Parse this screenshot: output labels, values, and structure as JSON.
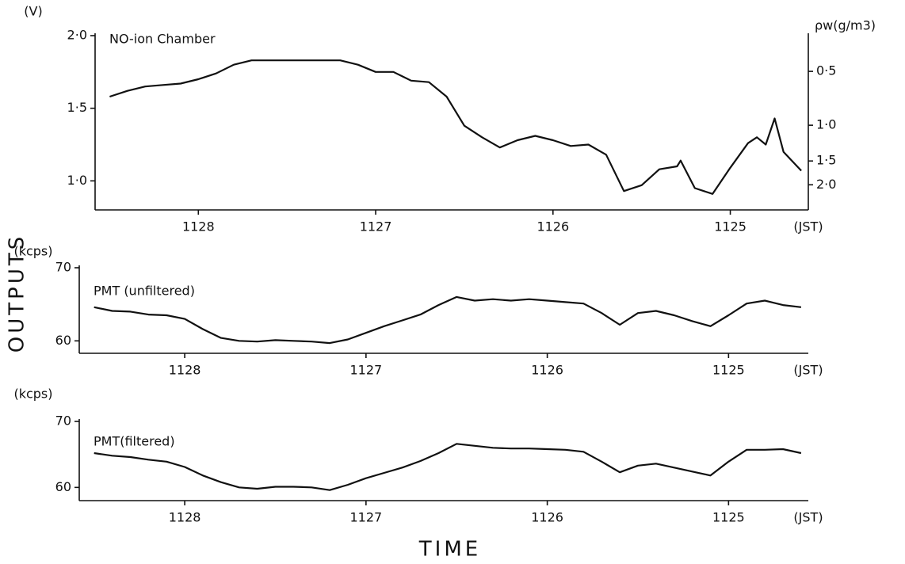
{
  "figure": {
    "ylabel": "OUTPUTS",
    "xlabel": "TIME"
  },
  "chart_data": [
    {
      "type": "line",
      "title": "NO-ion Chamber",
      "ylabel": "(V)",
      "xlabel": "(JST)",
      "y2label": "ρw(g/m3)",
      "xlim": [
        1128.56,
        1124.56
      ],
      "xticks": [
        1128,
        1127,
        1126,
        1125
      ],
      "ylim": [
        0.8,
        2.0
      ],
      "yticks": [
        {
          "value": 1.0,
          "label": "1·0"
        },
        {
          "value": 1.5,
          "label": "1·5"
        },
        {
          "value": 2.0,
          "label": "2·0"
        }
      ],
      "y2ticks": [
        {
          "value": 1.754,
          "label": "0·5"
        },
        {
          "value": 1.383,
          "label": "1·0"
        },
        {
          "value": 1.137,
          "label": "1·5"
        },
        {
          "value": 0.973,
          "label": "2·0"
        }
      ],
      "series": [
        {
          "color": "#111111",
          "x": [
            1128.5,
            1128.4,
            1128.3,
            1128.2,
            1128.1,
            1128.0,
            1127.9,
            1127.8,
            1127.7,
            1127.6,
            1127.5,
            1127.4,
            1127.3,
            1127.2,
            1127.1,
            1127.0,
            1126.9,
            1126.8,
            1126.7,
            1126.6,
            1126.5,
            1126.4,
            1126.3,
            1126.2,
            1126.1,
            1126.0,
            1125.9,
            1125.8,
            1125.7,
            1125.6,
            1125.5,
            1125.4,
            1125.3,
            1125.28,
            1125.2,
            1125.1,
            1125.0,
            1124.9,
            1124.85,
            1124.8,
            1124.75,
            1124.7,
            1124.6
          ],
          "values": [
            1.58,
            1.62,
            1.65,
            1.66,
            1.67,
            1.7,
            1.74,
            1.8,
            1.83,
            1.83,
            1.83,
            1.83,
            1.83,
            1.83,
            1.8,
            1.75,
            1.75,
            1.69,
            1.68,
            1.58,
            1.38,
            1.3,
            1.23,
            1.28,
            1.31,
            1.28,
            1.24,
            1.25,
            1.18,
            0.93,
            0.97,
            1.08,
            1.1,
            1.14,
            0.95,
            0.91,
            1.09,
            1.26,
            1.3,
            1.25,
            1.43,
            1.2,
            1.07
          ]
        }
      ]
    },
    {
      "type": "line",
      "title": "PMT (unfiltered)",
      "ylabel": "(kcps)",
      "xlabel": "(JST)",
      "xlim": [
        1128.56,
        1124.56
      ],
      "xticks": [
        1128,
        1127,
        1126,
        1125
      ],
      "ylim": [
        58.3,
        70
      ],
      "yticks": [
        60,
        70
      ],
      "series": [
        {
          "color": "#111111",
          "x": [
            1128.5,
            1128.4,
            1128.3,
            1128.2,
            1128.1,
            1128.0,
            1127.9,
            1127.8,
            1127.7,
            1127.6,
            1127.5,
            1127.4,
            1127.3,
            1127.2,
            1127.1,
            1127.0,
            1126.9,
            1126.8,
            1126.7,
            1126.6,
            1126.5,
            1126.4,
            1126.3,
            1126.2,
            1126.1,
            1126.0,
            1125.9,
            1125.8,
            1125.7,
            1125.6,
            1125.5,
            1125.4,
            1125.3,
            1125.2,
            1125.1,
            1125.0,
            1124.9,
            1124.8,
            1124.7,
            1124.6
          ],
          "values": [
            64.6,
            64.1,
            64.0,
            63.6,
            63.5,
            63.0,
            61.6,
            60.4,
            60.0,
            59.9,
            60.1,
            60.0,
            59.9,
            59.7,
            60.2,
            61.1,
            62.0,
            62.8,
            63.6,
            64.9,
            66.0,
            65.5,
            65.7,
            65.5,
            65.7,
            65.5,
            65.3,
            65.1,
            63.8,
            62.2,
            63.8,
            64.1,
            63.5,
            62.7,
            62.0,
            63.5,
            65.1,
            65.5,
            64.9,
            64.6
          ]
        }
      ]
    },
    {
      "type": "line",
      "title": "PMT(filtered)",
      "ylabel": "(kcps)",
      "xlabel": "(JST)",
      "xlim": [
        1128.56,
        1124.56
      ],
      "xticks": [
        1128,
        1127,
        1126,
        1125
      ],
      "ylim": [
        58,
        70
      ],
      "yticks": [
        60,
        70
      ],
      "series": [
        {
          "color": "#111111",
          "x": [
            1128.5,
            1128.4,
            1128.3,
            1128.2,
            1128.1,
            1128.0,
            1127.9,
            1127.8,
            1127.7,
            1127.6,
            1127.5,
            1127.4,
            1127.3,
            1127.2,
            1127.1,
            1127.0,
            1126.9,
            1126.8,
            1126.7,
            1126.6,
            1126.5,
            1126.4,
            1126.3,
            1126.2,
            1126.1,
            1126.0,
            1125.9,
            1125.8,
            1125.7,
            1125.6,
            1125.5,
            1125.4,
            1125.3,
            1125.2,
            1125.1,
            1125.0,
            1124.9,
            1124.8,
            1124.7,
            1124.6
          ],
          "values": [
            65.2,
            64.8,
            64.6,
            64.2,
            63.9,
            63.1,
            61.8,
            60.8,
            60.0,
            59.8,
            60.1,
            60.1,
            60.0,
            59.6,
            60.4,
            61.4,
            62.2,
            63.0,
            64.0,
            65.2,
            66.6,
            66.3,
            66.0,
            65.9,
            65.9,
            65.8,
            65.7,
            65.4,
            63.9,
            62.3,
            63.3,
            63.6,
            63.0,
            62.4,
            61.8,
            63.9,
            65.7,
            65.7,
            65.8,
            65.2
          ]
        }
      ]
    }
  ]
}
